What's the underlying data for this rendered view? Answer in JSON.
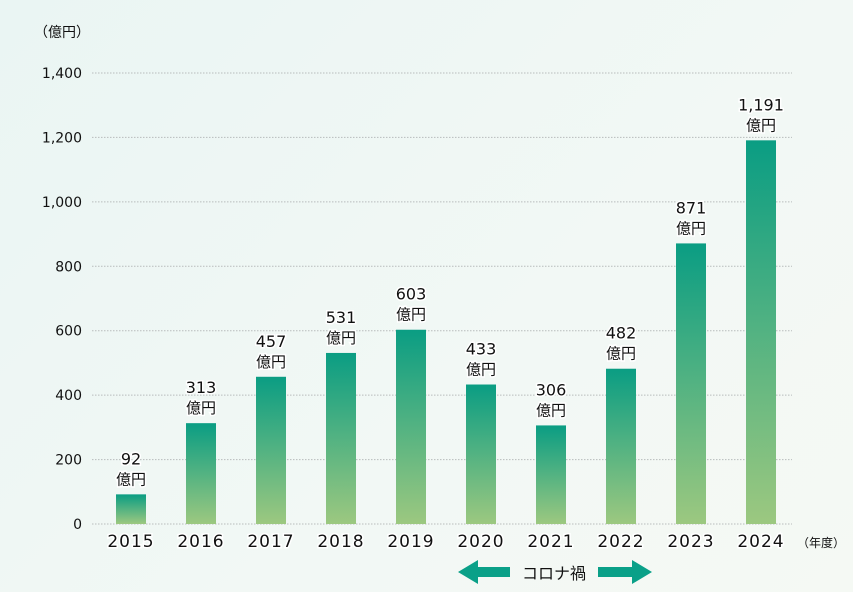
{
  "chart_data": {
    "type": "bar",
    "title": "",
    "ylabel": "（億円）",
    "xlabel": "（年度）",
    "ylim": [
      0,
      1400
    ],
    "yticks": [
      0,
      200,
      400,
      600,
      800,
      1000,
      1200,
      1400
    ],
    "ytick_labels": [
      "0",
      "200",
      "400",
      "600",
      "800",
      "1,000",
      "1,200",
      "1,400"
    ],
    "grid": true,
    "categories": [
      "2015",
      "2016",
      "2017",
      "2018",
      "2019",
      "2020",
      "2021",
      "2022",
      "2023",
      "2024"
    ],
    "values": [
      92,
      313,
      457,
      531,
      603,
      433,
      306,
      482,
      871,
      1191
    ],
    "value_labels": [
      "92",
      "313",
      "457",
      "531",
      "603",
      "433",
      "306",
      "482",
      "871",
      "1,191"
    ],
    "unit_label": "億円",
    "annotation": {
      "text": "コロナ禍",
      "from": "2020",
      "to": "2022"
    },
    "colors": {
      "bar_top": "#0a9d83",
      "bar_bottom": "#9cc880",
      "arrow": "#0aa088",
      "grid": "#b8bcbc"
    }
  }
}
